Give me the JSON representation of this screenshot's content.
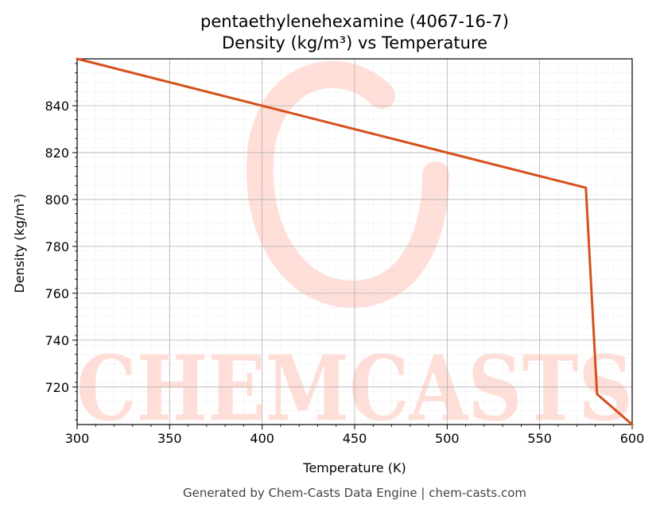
{
  "chart_data": {
    "type": "line",
    "title": "pentaethylenehexamine (4067-16-7)",
    "subtitle": "Density (kg/m³) vs Temperature",
    "xlabel": "Temperature (K)",
    "ylabel": "Density (kg/m³)",
    "xlim": [
      300,
      600
    ],
    "ylim": [
      704,
      860
    ],
    "xticks": [
      300,
      350,
      400,
      450,
      500,
      550,
      600
    ],
    "yticks": [
      720,
      740,
      760,
      780,
      800,
      820,
      840
    ],
    "grid": true,
    "series": [
      {
        "color": "#d4511e",
        "x": [
          300,
          575,
          581,
          600
        ],
        "y": [
          860,
          805,
          717,
          704
        ]
      }
    ]
  },
  "watermark": {
    "text": "CHEMCASTS",
    "color": "#ffd9d1"
  },
  "footer": "Generated by Chem-Casts Data Engine | chem-casts.com"
}
